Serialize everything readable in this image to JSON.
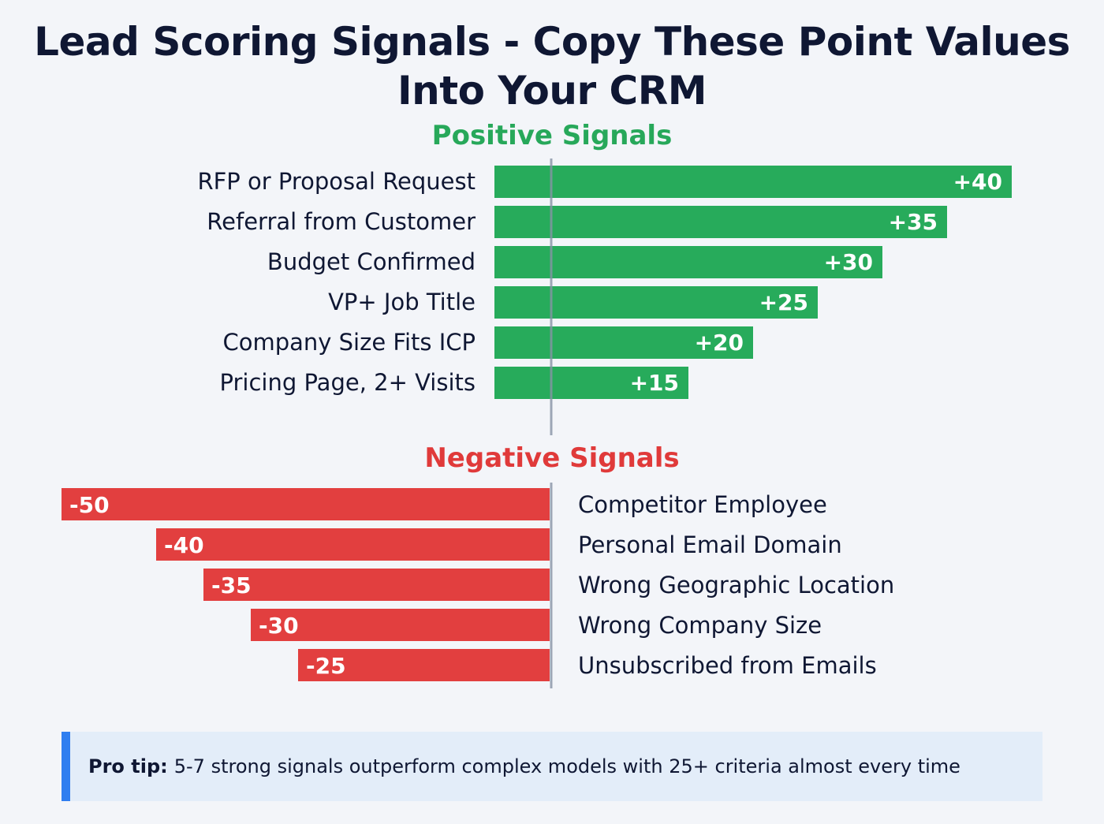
{
  "chart_data": {
    "type": "bar",
    "title": "Lead Scoring Signals - Copy These Point Values Into Your CRM",
    "series": [
      {
        "name": "Positive Signals",
        "color": "#27ab5b",
        "categories": [
          "RFP or Proposal Request",
          "Referral from Customer",
          "Budget Confirmed",
          "VP+ Job Title",
          "Company Size Fits ICP",
          "Pricing Page, 2+ Visits"
        ],
        "values": [
          40,
          35,
          30,
          25,
          20,
          15
        ],
        "labels": [
          "+40",
          "+35",
          "+30",
          "+25",
          "+20",
          "+15"
        ]
      },
      {
        "name": "Negative Signals",
        "color": "#e23f3f",
        "categories": [
          "Competitor Employee",
          "Personal Email Domain",
          "Wrong Geographic Location",
          "Wrong Company Size",
          "Unsubscribed from Emails"
        ],
        "values": [
          -50,
          -40,
          -35,
          -30,
          -25
        ],
        "labels": [
          "-50",
          "-40",
          "-35",
          "-30",
          "-25"
        ]
      }
    ]
  },
  "tip": {
    "label": "Pro tip:",
    "text": "5-7 strong signals outperform complex models with 25+ criteria almost every time"
  }
}
